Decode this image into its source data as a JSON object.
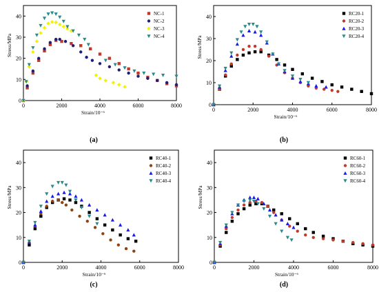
{
  "chart_data": [
    {
      "type": "scatter",
      "panel_label": "(a)",
      "xlabel": "Strain/10⁻⁶",
      "ylabel": "Stress/MPa",
      "xlim": [
        0,
        8000
      ],
      "ylim": [
        0,
        45
      ],
      "xticks": [
        0,
        2000,
        4000,
        6000,
        8000
      ],
      "yticks": [
        0,
        10,
        20,
        30,
        40
      ],
      "legend_position": "top-right",
      "series": [
        {
          "name": "NC-1",
          "color": "#c0392b",
          "marker": "square",
          "x": [
            0,
            200,
            500,
            800,
            1100,
            1400,
            1700,
            2000,
            2500,
            3000,
            3500,
            4000,
            4500,
            5000,
            5500,
            6000,
            6500,
            7000,
            7500,
            8000
          ],
          "y": [
            0,
            6,
            13,
            19,
            23.5,
            26.5,
            28.5,
            28,
            27,
            26,
            24.5,
            22,
            20,
            17.5,
            15,
            13,
            11,
            9.5,
            8,
            7
          ]
        },
        {
          "name": "NC-2",
          "color": "#1f1f7a",
          "marker": "circle",
          "x": [
            0,
            200,
            500,
            800,
            1100,
            1400,
            1700,
            1900,
            2200,
            2600,
            3000,
            3300,
            3600,
            4000,
            4500,
            5000,
            5500,
            6000,
            6500,
            7000,
            7500,
            8000
          ],
          "y": [
            0,
            7,
            14,
            20,
            24.5,
            27.5,
            29,
            29,
            28,
            26,
            23,
            20.5,
            19,
            17.5,
            16,
            14.5,
            13,
            11.5,
            10.5,
            9.5,
            8.5,
            7.5
          ]
        },
        {
          "name": "NC-3",
          "color": "#f2f20a",
          "marker": "diamond",
          "x": [
            0,
            150,
            300,
            500,
            700,
            900,
            1100,
            1300,
            1500,
            1700,
            1900,
            2100,
            2300,
            2500,
            3800,
            4000,
            4300,
            4700,
            5000,
            5300
          ],
          "y": [
            0,
            9,
            16,
            23,
            28,
            32,
            34.5,
            36.5,
            37.2,
            37,
            36,
            35,
            34,
            33,
            12,
            10.5,
            9.5,
            8.5,
            7.5,
            6.5
          ]
        },
        {
          "name": "NC-4",
          "color": "#2a8a8a",
          "marker": "triangle-down",
          "x": [
            0,
            150,
            300,
            500,
            700,
            900,
            1100,
            1300,
            1500,
            1700,
            1900,
            2100,
            2300,
            2600,
            2900,
            3200,
            3400,
            4300,
            4800,
            5300,
            5800,
            6300,
            6800,
            7300,
            8000
          ],
          "y": [
            0,
            9,
            17,
            25,
            31,
            35.5,
            39,
            41,
            41.5,
            41,
            39.5,
            37.5,
            35,
            33,
            31,
            29,
            26.5,
            19,
            17,
            15.5,
            14,
            13,
            12.5,
            12,
            11.5
          ]
        }
      ]
    },
    {
      "type": "scatter",
      "panel_label": "(b)",
      "xlabel": "Strain/10⁻⁶",
      "ylabel": "Stress/MPa",
      "xlim": [
        0,
        8000
      ],
      "ylim": [
        0,
        45
      ],
      "xticks": [
        0,
        2000,
        4000,
        6000,
        8000
      ],
      "yticks": [
        0,
        10,
        20,
        30,
        40
      ],
      "legend_position": "top-right",
      "series": [
        {
          "name": "RC20-1",
          "color": "#000000",
          "marker": "square",
          "x": [
            0,
            300,
            600,
            900,
            1200,
            1500,
            1800,
            2100,
            2400,
            2800,
            3200,
            3600,
            4000,
            4500,
            5000,
            5500,
            6000,
            6500,
            7000,
            7500,
            8000
          ],
          "y": [
            0,
            7,
            13,
            17.5,
            20.5,
            22.5,
            23.5,
            24,
            24,
            22.5,
            20.5,
            18,
            16,
            14,
            12,
            10.5,
            9,
            8,
            7,
            6,
            5
          ]
        },
        {
          "name": "RC20-2",
          "color": "#c0392b",
          "marker": "circle",
          "x": [
            0,
            300,
            600,
            900,
            1200,
            1500,
            1800,
            2100,
            2400,
            2800,
            3200,
            3600,
            4000,
            4400,
            4800,
            5200,
            5600,
            6000,
            6300
          ],
          "y": [
            0,
            7,
            13.5,
            18.5,
            22.5,
            25,
            26.5,
            26.5,
            25,
            22,
            18,
            14.5,
            12,
            10,
            8.5,
            7.5,
            7,
            6.5,
            6
          ]
        },
        {
          "name": "RC20-3",
          "color": "#1a1ae6",
          "marker": "triangle-up",
          "x": [
            0,
            300,
            600,
            900,
            1200,
            1500,
            1800,
            2100,
            2400,
            2700,
            3000,
            3300,
            3600,
            4000,
            4400,
            4800,
            5200,
            5700
          ],
          "y": [
            0,
            8,
            15.5,
            22,
            27.5,
            31.5,
            33.5,
            33,
            31.5,
            28,
            23,
            18.5,
            15,
            12,
            10.5,
            9.5,
            8.5,
            8
          ]
        },
        {
          "name": "RC20-4",
          "color": "#2a8a8a",
          "marker": "triangle-down",
          "x": [
            0,
            300,
            600,
            900,
            1200,
            1400,
            1600,
            1800,
            2000,
            2200,
            2400,
            2700,
            3000,
            3300,
            3600,
            4000,
            4400,
            4800
          ],
          "y": [
            0,
            8.5,
            16.5,
            23.5,
            29.5,
            33,
            35.5,
            36.5,
            36.5,
            35.5,
            33,
            28.5,
            23,
            18.5,
            15.5,
            13,
            11.5,
            10
          ]
        }
      ]
    },
    {
      "type": "scatter",
      "panel_label": "(c)",
      "xlabel": "Strain/10⁻⁶",
      "ylabel": "Stress/MPa",
      "xlim": [
        0,
        8000
      ],
      "ylim": [
        0,
        45
      ],
      "xticks": [
        0,
        2000,
        4000,
        6000,
        8000
      ],
      "yticks": [
        0,
        10,
        20,
        30,
        40
      ],
      "legend_position": "top-right",
      "series": [
        {
          "name": "RC40-1",
          "color": "#000000",
          "marker": "square",
          "x": [
            0,
            300,
            600,
            900,
            1200,
            1500,
            1800,
            2100,
            2400,
            2700,
            3000,
            3400,
            3800,
            4200,
            4600,
            5000,
            5400,
            5800
          ],
          "y": [
            0,
            7,
            13.5,
            18.5,
            22,
            24,
            25,
            25.5,
            25,
            24,
            22.5,
            20,
            17.5,
            15,
            13,
            11,
            9.5,
            8.5
          ]
        },
        {
          "name": "RC40-2",
          "color": "#8b4513",
          "marker": "circle",
          "x": [
            0,
            300,
            600,
            900,
            1200,
            1500,
            1800,
            2000,
            2200,
            2500,
            2900,
            3300,
            3700,
            4100,
            4500,
            4900,
            5300,
            5700
          ],
          "y": [
            0,
            8,
            14.5,
            19.5,
            22.5,
            24.5,
            25,
            24,
            23,
            21,
            18.5,
            16.5,
            14,
            11.5,
            9,
            7,
            5.5,
            4.5
          ]
        },
        {
          "name": "RC40-3",
          "color": "#1a1ae6",
          "marker": "triangle-up",
          "x": [
            0,
            300,
            600,
            900,
            1200,
            1500,
            1800,
            2100,
            2400,
            2700,
            3000,
            3400,
            3800,
            4200,
            4600,
            5000,
            5400,
            5700
          ],
          "y": [
            0,
            8,
            15,
            20.5,
            24.5,
            26.5,
            27.5,
            28,
            27.5,
            26.5,
            25,
            23,
            21,
            19,
            17,
            15,
            13,
            11
          ]
        },
        {
          "name": "RC40-4",
          "color": "#2a8a8a",
          "marker": "triangle-down",
          "x": [
            0,
            300,
            600,
            900,
            1200,
            1500,
            1800,
            2000,
            2200,
            2400,
            2700,
            3000,
            3400,
            3800
          ],
          "y": [
            0,
            8.5,
            16,
            22.5,
            27.5,
            30.5,
            32,
            32,
            31,
            28.5,
            25,
            22,
            18.5,
            15.5
          ]
        }
      ]
    },
    {
      "type": "scatter",
      "panel_label": "(d)",
      "xlabel": "Strain/10⁻⁶",
      "ylabel": "Stress/MPa",
      "xlim": [
        0,
        8000
      ],
      "ylim": [
        0,
        45
      ],
      "xticks": [
        0,
        2000,
        4000,
        6000,
        8000
      ],
      "yticks": [
        0,
        10,
        20,
        30,
        40
      ],
      "legend_position": "top-right",
      "series": [
        {
          "name": "RC60-1",
          "color": "#000000",
          "marker": "square",
          "x": [
            0,
            300,
            600,
            900,
            1200,
            1500,
            1800,
            2100,
            2400,
            2700,
            3000,
            3400,
            3800,
            4200,
            4600,
            5000,
            5500,
            6000,
            6500,
            7000,
            7500,
            8000
          ],
          "y": [
            0,
            6.5,
            12,
            16.5,
            19.5,
            21.5,
            23,
            23.5,
            23.5,
            22.5,
            21,
            19.5,
            17.5,
            15.5,
            13.5,
            12,
            10.5,
            9.5,
            8.5,
            7.5,
            7,
            6.5
          ]
        },
        {
          "name": "RC60-2",
          "color": "#c0392b",
          "marker": "circle",
          "x": [
            0,
            300,
            600,
            900,
            1200,
            1500,
            1800,
            2100,
            2400,
            2700,
            3000,
            3400,
            3800,
            4200,
            4600,
            5000,
            5500,
            6000,
            6500,
            7000,
            7500,
            8000
          ],
          "y": [
            0,
            7,
            13.5,
            18,
            21,
            23,
            24,
            24.5,
            24,
            22.5,
            20,
            17,
            14.5,
            12.5,
            11,
            10,
            9.5,
            9,
            8.5,
            8,
            7.5,
            7
          ]
        },
        {
          "name": "RC60-3",
          "color": "#1a1ae6",
          "marker": "triangle-up",
          "x": [
            0,
            300,
            600,
            900,
            1200,
            1500,
            1800,
            2000,
            2200,
            2500,
            2800,
            3100,
            3400,
            3700,
            4000
          ],
          "y": [
            0,
            7.5,
            14.5,
            19.5,
            23,
            25,
            26,
            26,
            25.5,
            23.5,
            21,
            19,
            17,
            15.5,
            14
          ]
        },
        {
          "name": "RC60-4",
          "color": "#2a8a8a",
          "marker": "triangle-down",
          "x": [
            0,
            300,
            600,
            900,
            1200,
            1500,
            1800,
            2000,
            2200,
            2500,
            2800,
            3100,
            3400,
            3700,
            3900
          ],
          "y": [
            0,
            8,
            15,
            20,
            23,
            24.5,
            25,
            24.5,
            23.5,
            21.5,
            18.5,
            15.5,
            12.5,
            10,
            9
          ]
        }
      ]
    }
  ]
}
